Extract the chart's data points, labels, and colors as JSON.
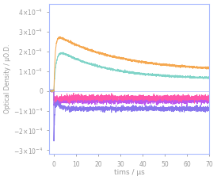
{
  "title": "",
  "xlabel": "tims / μs",
  "ylabel": "Optical Density / μO.D.",
  "xlim": [
    -2,
    70
  ],
  "ylim": [
    -0.00032,
    0.00044
  ],
  "yticks": [
    -0.0003,
    -0.0002,
    -0.0001,
    0,
    0.0001,
    0.0002,
    0.0003,
    0.0004
  ],
  "xticks": [
    0,
    10,
    20,
    30,
    40,
    50,
    60,
    70
  ],
  "colors": {
    "orange": "#F5A850",
    "teal": "#80D4C8",
    "violet": "#BB55EE",
    "pink": "#FF55AA",
    "blue": "#8877EE"
  },
  "spine_color": "#AABBFF",
  "tick_color": "#999999",
  "label_color": "#999999",
  "bg_color": "#FFFFFF",
  "figsize": [
    2.74,
    2.27
  ],
  "dpi": 100,
  "seed": 42
}
